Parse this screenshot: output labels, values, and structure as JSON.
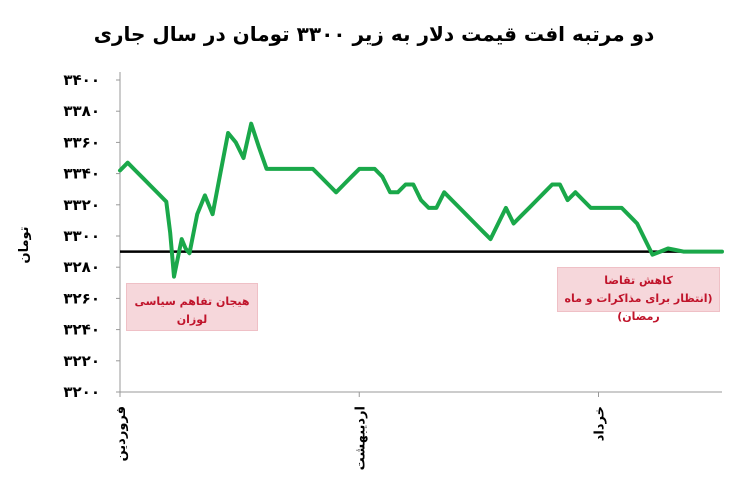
{
  "chart_data": {
    "type": "line",
    "title": "دو مرتبه افت قیمت دلار به زیر ۳۳۰۰ تومان در سال جاری",
    "ylabel": "تومان",
    "ylim": [
      3200,
      3400
    ],
    "yticks": [
      "۳۲۰۰",
      "۳۲۲۰",
      "۳۲۴۰",
      "۳۲۶۰",
      "۳۲۸۰",
      "۳۳۰۰",
      "۳۳۲۰",
      "۳۳۴۰",
      "۳۳۶۰",
      "۳۳۸۰",
      "۳۴۰۰"
    ],
    "ytick_values": [
      3200,
      3220,
      3240,
      3260,
      3280,
      3300,
      3320,
      3340,
      3360,
      3380,
      3400
    ],
    "xticks": [
      {
        "label": "فروردین",
        "x": 0
      },
      {
        "label": "اردیبهشت",
        "x": 31
      },
      {
        "label": "خرداد",
        "x": 62
      }
    ],
    "xlim": [
      0,
      78
    ],
    "reference_line": 3290,
    "series": [
      {
        "color": "#1aa84a",
        "x": [
          0,
          1,
          2,
          3,
          4,
          5,
          6,
          6.5,
          7,
          8,
          8.5,
          9,
          10,
          11,
          12,
          13,
          14,
          15,
          16,
          17,
          18,
          19,
          20,
          21,
          22,
          23,
          24,
          25,
          26,
          27,
          28,
          29,
          30,
          31,
          32,
          33,
          34,
          35,
          36,
          37,
          38,
          39,
          40,
          41,
          42,
          43,
          44,
          45,
          46,
          47,
          48,
          49,
          50,
          51,
          52,
          53,
          54,
          55,
          56,
          57,
          58,
          59,
          60,
          61,
          62,
          63,
          64,
          65,
          66,
          67,
          68,
          69,
          70,
          71,
          72,
          73,
          74,
          75,
          76,
          77,
          78
        ],
        "y": [
          3342,
          3347,
          3342,
          3337,
          3332,
          3327,
          3322,
          3302,
          3274,
          3298,
          3292,
          3289,
          3314,
          3326,
          3314,
          3340,
          3366,
          3360,
          3350,
          3372,
          3357,
          3343,
          3343,
          3343,
          3343,
          3343,
          3343,
          3343,
          3338,
          3333,
          3328,
          3333,
          3338,
          3343,
          3343,
          3343,
          3338,
          3328,
          3328,
          3333,
          3333,
          3323,
          3318,
          3318,
          3328,
          3323,
          3318,
          3313,
          3308,
          3303,
          3298,
          3308,
          3318,
          3308,
          3313,
          3318,
          3323,
          3328,
          3333,
          3333,
          3323,
          3328,
          3323,
          3318,
          3318,
          3318,
          3318,
          3318,
          3313,
          3308,
          3298,
          3288,
          3290,
          3292,
          3291,
          3290,
          3290,
          3290,
          3290,
          3290,
          3290
        ]
      }
    ],
    "annotations": [
      {
        "text": "هیجان تفاهم سیاسی لوزان"
      },
      {
        "text": "کاهش تقاضا",
        "text2": "(انتظار برای مذاکرات و ماه رمضان)"
      }
    ]
  }
}
